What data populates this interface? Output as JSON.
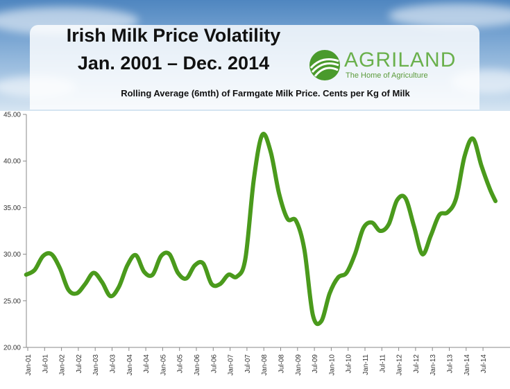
{
  "header": {
    "title_line1": "Irish Milk Price Volatility",
    "title_line2": "Jan. 2001 – Dec. 2014",
    "subtitle": "Rolling Average (6mth) of Farmgate Milk Price. Cents per Kg of Milk"
  },
  "logo": {
    "word": "AGRILAND",
    "tagline": "The Home of Agriculture",
    "icon": "agriland-leaf-icon",
    "color": "#6ab04c"
  },
  "colors": {
    "line": "#4a9a1c",
    "sky": "#6b9fd0"
  },
  "chart_data": {
    "type": "line",
    "title": "Irish Milk Price Volatility",
    "ylim": [
      20,
      45
    ],
    "yticks": [
      "20.00",
      "25.00",
      "30.00",
      "35.00",
      "40.00",
      "45.00"
    ],
    "xticks": [
      "Jan-01",
      "Jul-01",
      "Jan-02",
      "Jul-02",
      "Jan-03",
      "Jul-03",
      "Jan-04",
      "Jul-04",
      "Jan-05",
      "Jul-05",
      "Jan-06",
      "Jul-06",
      "Jan-07",
      "Jul-07",
      "Jan-08",
      "Jul-08",
      "Jan-09",
      "Jul-09",
      "Jan-10",
      "Jul-10",
      "Jan-11",
      "Jul-11",
      "Jan-12",
      "Jul-12",
      "Jan-13",
      "Jul-13",
      "Jan-14",
      "Jul-14"
    ],
    "grid": false,
    "series": [
      {
        "points": [
          [
            "2001-01",
            27.8
          ],
          [
            "2001-04",
            28.3
          ],
          [
            "2001-07",
            29.8
          ],
          [
            "2001-10",
            30.0
          ],
          [
            "2002-01",
            28.5
          ],
          [
            "2002-04",
            26.2
          ],
          [
            "2002-07",
            25.8
          ],
          [
            "2002-10",
            26.8
          ],
          [
            "2003-01",
            28.0
          ],
          [
            "2003-04",
            27.0
          ],
          [
            "2003-07",
            25.5
          ],
          [
            "2003-10",
            26.5
          ],
          [
            "2004-01",
            28.8
          ],
          [
            "2004-04",
            29.9
          ],
          [
            "2004-07",
            28.1
          ],
          [
            "2004-10",
            27.8
          ],
          [
            "2005-01",
            29.8
          ],
          [
            "2005-04",
            30.0
          ],
          [
            "2005-07",
            28.0
          ],
          [
            "2005-10",
            27.4
          ],
          [
            "2006-01",
            28.8
          ],
          [
            "2006-04",
            29.0
          ],
          [
            "2006-07",
            26.8
          ],
          [
            "2006-10",
            26.8
          ],
          [
            "2007-01",
            27.8
          ],
          [
            "2007-04",
            27.6
          ],
          [
            "2007-07",
            29.5
          ],
          [
            "2007-10",
            38.0
          ],
          [
            "2008-01",
            42.8
          ],
          [
            "2008-04",
            41.0
          ],
          [
            "2008-07",
            36.5
          ],
          [
            "2008-10",
            33.8
          ],
          [
            "2009-01",
            33.6
          ],
          [
            "2009-04",
            30.5
          ],
          [
            "2009-07",
            23.5
          ],
          [
            "2009-10",
            22.8
          ],
          [
            "2010-01",
            25.8
          ],
          [
            "2010-04",
            27.5
          ],
          [
            "2010-07",
            28.0
          ],
          [
            "2010-10",
            30.0
          ],
          [
            "2011-01",
            32.8
          ],
          [
            "2011-04",
            33.4
          ],
          [
            "2011-07",
            32.5
          ],
          [
            "2011-10",
            33.2
          ],
          [
            "2012-01",
            35.8
          ],
          [
            "2012-04",
            36.0
          ],
          [
            "2012-07",
            33.0
          ],
          [
            "2012-10",
            30.0
          ],
          [
            "2013-01",
            32.0
          ],
          [
            "2013-04",
            34.2
          ],
          [
            "2013-07",
            34.5
          ],
          [
            "2013-10",
            36.0
          ],
          [
            "2014-01",
            40.5
          ],
          [
            "2014-04",
            42.4
          ],
          [
            "2014-07",
            39.5
          ],
          [
            "2014-10",
            37.0
          ],
          [
            "2014-12",
            35.7
          ]
        ]
      }
    ]
  }
}
